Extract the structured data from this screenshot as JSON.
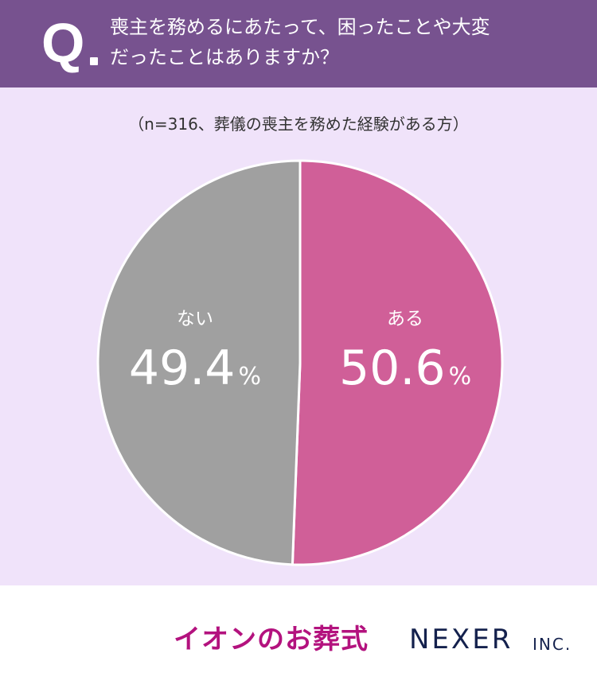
{
  "header": {
    "q_mark": "Q",
    "question_line1": "喪主を務めるにあたって、困ったことや大変",
    "question_line2": "だったことはありますか？"
  },
  "sample_note": "（n=316、葬儀の喪主を務めた経験がある方）",
  "chart_data": {
    "type": "pie",
    "unit": "%",
    "slices": [
      {
        "label": "ある",
        "value": 50.6,
        "display": "50.6",
        "color": "#d05f98"
      },
      {
        "label": "ない",
        "value": 49.4,
        "display": "49.4",
        "color": "#a0a0a0"
      }
    ],
    "start": "12 o'clock",
    "direction": "clockwise"
  },
  "footer": {
    "brand_aeon": "イオンのお葬式",
    "brand_nexer": "NEXER",
    "brand_inc": "INC."
  },
  "colors": {
    "header_bg": "#77528f",
    "chart_bg": "#f0e3fa",
    "aeon_brand": "#b3127e",
    "nexer_brand": "#14214d"
  }
}
